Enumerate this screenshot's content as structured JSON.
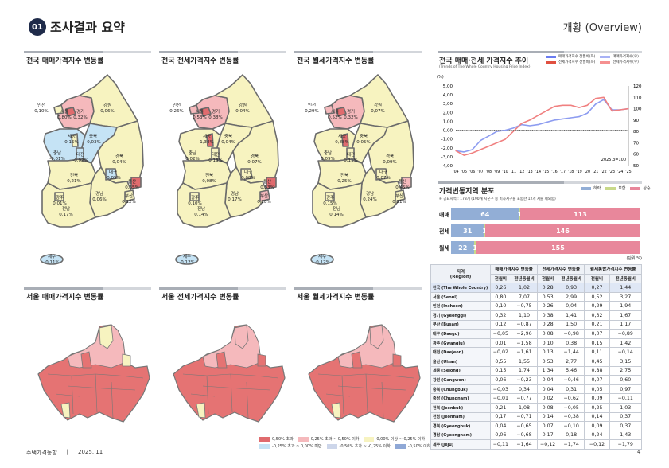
{
  "header": {
    "badge": "01",
    "title": "조사결과 요약",
    "section": "개황 (Overview)"
  },
  "legend_colors": {
    "up_high": "#e06b6e",
    "up_mid": "#f5b9bc",
    "up_low": "#f7f3c0",
    "down_low": "#c5e3f5",
    "down_mid": "#cdd6ea",
    "down_high": "#8fa8d6"
  },
  "national_maps": [
    {
      "title": "전국 매매가격지수 변동률",
      "regions": {
        "인천": "0,10%",
        "서울": "0,80%",
        "경기": "0,32%",
        "강원": "0,06%",
        "세종": "0,15%",
        "충북": "-0,03%",
        "충남": "-0,01%",
        "대전": "-0,02%",
        "경북": "0,04%",
        "대구": "-0,05%",
        "전북": "0,21%",
        "울산": "0,55%",
        "부산": "0,12%",
        "광주": "0,01%",
        "경남": "0,06%",
        "전남": "0,17%",
        "제주": "-0,11%"
      }
    },
    {
      "title": "전국 전세가격지수 변동률",
      "regions": {
        "인천": "0,26%",
        "서울": "0,53%",
        "경기": "0,38%",
        "강원": "0,04%",
        "세종": "1,34%",
        "충북": "0,04%",
        "충남": "0,02%",
        "대전": "0,13%",
        "경북": "0,07%",
        "대구": "0,08%",
        "전북": "0,08%",
        "울산": "0,53%",
        "부산": "0,28%",
        "광주": "0,10%",
        "경남": "0,17%",
        "전남": "0,14%",
        "제주": "-0,12%"
      }
    },
    {
      "title": "전국 월세가격지수 변동률",
      "regions": {
        "인천": "0,29%",
        "서울": "0,52%",
        "경기": "0,32%",
        "강원": "0,07%",
        "세종": "0,88%",
        "충북": "0,05%",
        "충남": "0,09%",
        "대전": "0,11%",
        "경북": "0,09%",
        "대구": "0,07%",
        "전북": "0,25%",
        "울산": "0,45%",
        "부산": "0,21%",
        "광주": "0,15%",
        "경남": "0,24%",
        "전남": "0,14%",
        "제주": "-0,12%"
      }
    }
  ],
  "seoul_maps": [
    {
      "title": "서울 매매가격지수 변동률"
    },
    {
      "title": "서울 전세가격지수 변동률"
    },
    {
      "title": "서울 월세가격지수 변동률"
    }
  ],
  "map_legend": [
    "0,50% 초과",
    "0,25% 초과 ~ 0,50% 이하",
    "0,00% 이상 ~ 0,25% 이하",
    "-0,25% 초과 ~ 0,00% 미만",
    "-0,50% 초과 ~ -0,25% 이하",
    "-0,50% 이하"
  ],
  "chart_data": {
    "type": "line",
    "title": "전국 매매·전세 가격지수 추이",
    "subtitle": "(Trends of The Whole Country Housing Price Index)",
    "ylabel": "(%)",
    "annotation": "2025.3=100",
    "x": [
      "'04",
      "'05",
      "'06",
      "'07",
      "'08",
      "'09",
      "'10",
      "'11",
      "'12",
      "'13",
      "'14",
      "'15",
      "'16",
      "'17",
      "'18",
      "'19",
      "'20",
      "'21",
      "'22",
      "'23",
      "'24",
      "'25"
    ],
    "y_left_ticks": [
      "5,00",
      "4,00",
      "3,00",
      "2,00",
      "1,00",
      "0,00",
      "-1,00",
      "-2,00",
      "-3,00",
      "-4,00"
    ],
    "y_right_ticks": [
      "120",
      "110",
      "100",
      "90",
      "80",
      "70",
      "60",
      "50"
    ],
    "ylim_left": [
      -4,
      5
    ],
    "ylim_right": [
      50,
      120
    ],
    "legend": [
      "매매가격지수 전월비(좌)",
      "매매가격지수(우)",
      "전세가격지수 전월비(좌)",
      "전세가격지수(우)"
    ],
    "series": [
      {
        "name": "매매가격지수(우)",
        "color": "#8d9cf0",
        "values": [
          63,
          62,
          64,
          72,
          76,
          80,
          81,
          83,
          86,
          85,
          86,
          88,
          90,
          91,
          92,
          93,
          96,
          104,
          108,
          99,
          99,
          100
        ]
      },
      {
        "name": "전세가격지수(우)",
        "color": "#f08080",
        "values": [
          63,
          59,
          61,
          64,
          67,
          70,
          73,
          80,
          87,
          90,
          94,
          98,
          102,
          103,
          103,
          101,
          103,
          109,
          110,
          98,
          99,
          100
        ]
      }
    ]
  },
  "distribution": {
    "title": "가격변동지역 분포",
    "note": "※ 공표지역 : 178개 (190개 시군구 중 비자치구를 포함한 12개 시를 제외함)",
    "legend": [
      {
        "label": "하락",
        "color": "#92aed6"
      },
      {
        "label": "보합",
        "color": "#c8d98a"
      },
      {
        "label": "상승",
        "color": "#e8879b"
      }
    ],
    "rows": [
      {
        "label": "매매",
        "down": 64,
        "flat": 1,
        "up": 113
      },
      {
        "label": "전세",
        "down": 31,
        "flat": 1,
        "up": 146
      },
      {
        "label": "월세",
        "down": 22,
        "flat": 1,
        "up": 155
      }
    ],
    "unit": "(단위:%)"
  },
  "table": {
    "region_header": "지역",
    "region_header_en": "(Region)",
    "groups": [
      "매매가격지수 변동률",
      "전세가격지수 변동률",
      "월세통합가격지수 변동률"
    ],
    "sub": [
      "전월비",
      "전년동월비"
    ],
    "rows": [
      [
        "전국 (The Whole Country)",
        "0,26",
        "1,02",
        "0,28",
        "0,93",
        "0,27",
        "1,44"
      ],
      [
        "서울 (Seoul)",
        "0,80",
        "7,07",
        "0,53",
        "2,99",
        "0,52",
        "3,27"
      ],
      [
        "인천 (Incheon)",
        "0,10",
        "−0,75",
        "0,26",
        "0,04",
        "0,29",
        "1,94"
      ],
      [
        "경기 (Gyeonggi)",
        "0,32",
        "1,10",
        "0,38",
        "1,41",
        "0,32",
        "1,67"
      ],
      [
        "부산 (Busan)",
        "0,12",
        "−0,87",
        "0,28",
        "1,50",
        "0,21",
        "1,17"
      ],
      [
        "대구 (Daegu)",
        "−0,05",
        "−2,96",
        "0,08",
        "−0,98",
        "0,07",
        "−0,89"
      ],
      [
        "광주 (Gwangju)",
        "0,01",
        "−1,58",
        "0,10",
        "0,38",
        "0,15",
        "1,42"
      ],
      [
        "대전 (Daejeon)",
        "−0,02",
        "−1,61",
        "0,13",
        "−1,44",
        "0,11",
        "−0,14"
      ],
      [
        "울산 (Ulsan)",
        "0,55",
        "1,55",
        "0,53",
        "2,77",
        "0,45",
        "3,15"
      ],
      [
        "세종 (Sejong)",
        "0,15",
        "1,74",
        "1,34",
        "5,46",
        "0,88",
        "2,75"
      ],
      [
        "강원 (Gangwon)",
        "0,06",
        "−0,23",
        "0,04",
        "−0,46",
        "0,07",
        "0,60"
      ],
      [
        "충북 (Chungbuk)",
        "−0,03",
        "0,34",
        "0,04",
        "0,31",
        "0,05",
        "0,97"
      ],
      [
        "충남 (Chungnam)",
        "−0,01",
        "−0,77",
        "0,02",
        "−0,62",
        "0,09",
        "−0,11"
      ],
      [
        "전북 (Jeonbuk)",
        "0,21",
        "1,08",
        "0,08",
        "−0,05",
        "0,25",
        "1,03"
      ],
      [
        "전남 (Jeonnam)",
        "0,17",
        "−0,71",
        "0,14",
        "−0,38",
        "0,14",
        "0,37"
      ],
      [
        "경북 (Gyeongbuk)",
        "0,04",
        "−0,65",
        "0,07",
        "−0,10",
        "0,09",
        "0,37"
      ],
      [
        "경남 (Gyeongnam)",
        "0,06",
        "−0,68",
        "0,17",
        "0,18",
        "0,24",
        "1,43"
      ],
      [
        "제주 (Jeju)",
        "−0,11",
        "−1,64",
        "−0,12",
        "−1,74",
        "−0,12",
        "−1,79"
      ]
    ]
  },
  "footer": {
    "publication": "주택가격동향",
    "separator": "|",
    "date": "2025. 11",
    "page": "4"
  }
}
